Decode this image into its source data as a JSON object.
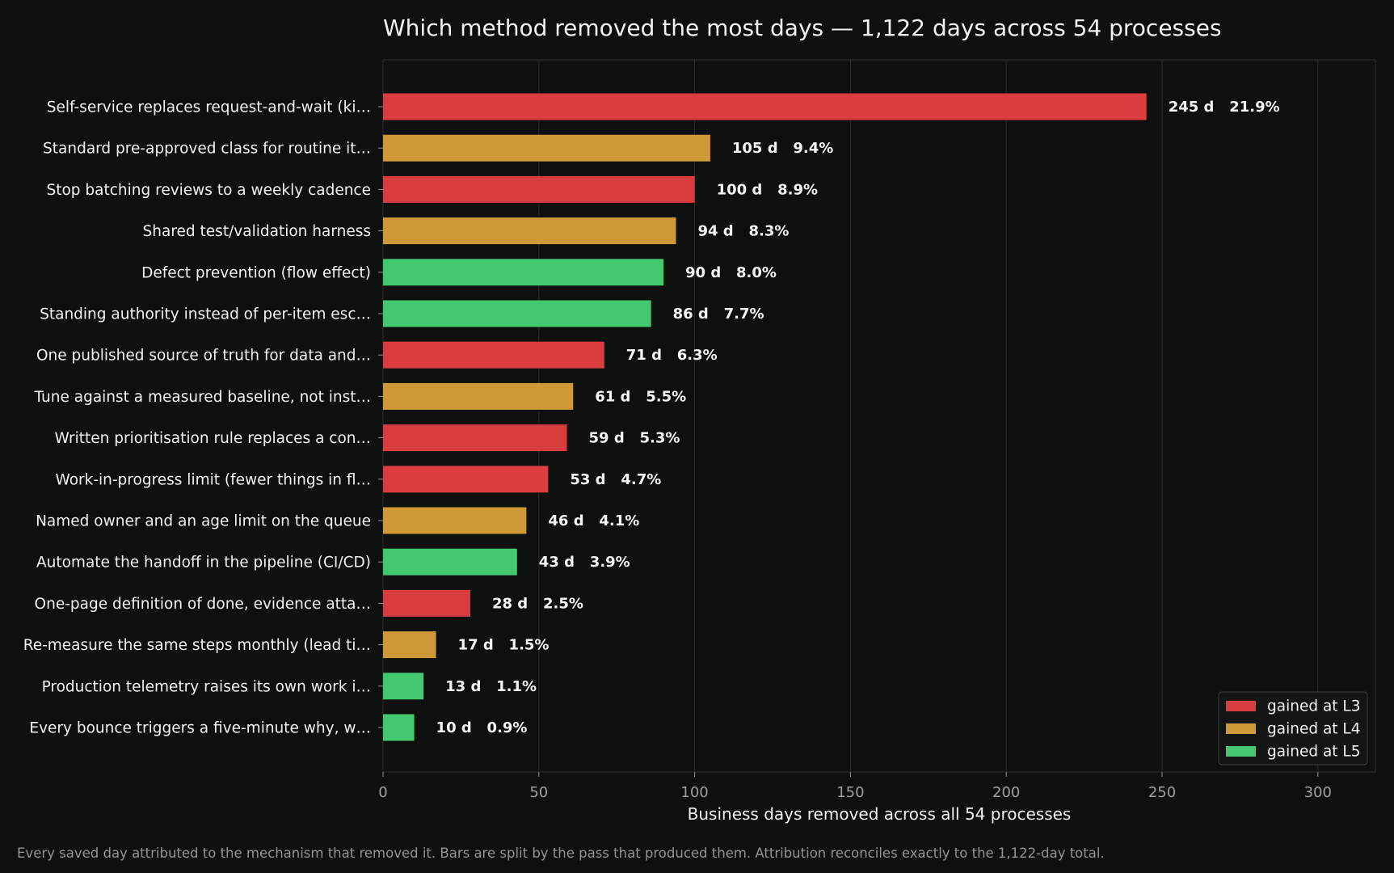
{
  "chart_data": {
    "type": "bar",
    "orientation": "horizontal",
    "title": "Which method removed the most days — 1,122 days across 54 processes",
    "xlabel": "Business days removed across all 54 processes",
    "ylabel": "",
    "xlim": [
      0,
      320
    ],
    "xticks": [
      0,
      50,
      100,
      150,
      200,
      250,
      300
    ],
    "grid": true,
    "legend_position": "bottom-right",
    "footnote": "Every saved day attributed to the mechanism that removed it. Bars are split by the pass that produced them. Attribution reconciles exactly to the 1,122-day total.",
    "legend": [
      {
        "label": "gained at L3",
        "color": "#d93d3f"
      },
      {
        "label": "gained at L4",
        "color": "#cf9937"
      },
      {
        "label": "gained at L5",
        "color": "#44c86f"
      }
    ],
    "bars": [
      {
        "category": "Self-service replaces request-and-wait (ki…",
        "value": 245,
        "label": "245 d   21.9%",
        "group": 0
      },
      {
        "category": "Standard pre-approved class for routine it…",
        "value": 105,
        "label": "105 d   9.4%",
        "group": 1
      },
      {
        "category": "Stop batching reviews to a weekly cadence",
        "value": 100,
        "label": "100 d   8.9%",
        "group": 0
      },
      {
        "category": "Shared test/validation harness",
        "value": 94,
        "label": "94 d   8.3%",
        "group": 1
      },
      {
        "category": "Defect prevention (flow effect)",
        "value": 90,
        "label": "90 d   8.0%",
        "group": 2
      },
      {
        "category": "Standing authority instead of per-item esc…",
        "value": 86,
        "label": "86 d   7.7%",
        "group": 2
      },
      {
        "category": "One published source of truth for data and…",
        "value": 71,
        "label": "71 d   6.3%",
        "group": 0
      },
      {
        "category": "Tune against a measured baseline, not inst…",
        "value": 61,
        "label": "61 d   5.5%",
        "group": 1
      },
      {
        "category": "Written prioritisation rule replaces a con…",
        "value": 59,
        "label": "59 d   5.3%",
        "group": 0
      },
      {
        "category": "Work-in-progress limit (fewer things in fl…",
        "value": 53,
        "label": "53 d   4.7%",
        "group": 0
      },
      {
        "category": "Named owner and an age limit on the queue",
        "value": 46,
        "label": "46 d   4.1%",
        "group": 1
      },
      {
        "category": "Automate the handoff in the pipeline (CI/CD)",
        "value": 43,
        "label": "43 d   3.9%",
        "group": 2
      },
      {
        "category": "One-page definition of done, evidence atta…",
        "value": 28,
        "label": "28 d   2.5%",
        "group": 0
      },
      {
        "category": "Re-measure the same steps monthly (lead ti…",
        "value": 17,
        "label": "17 d   1.5%",
        "group": 1
      },
      {
        "category": "Production telemetry raises its own work i…",
        "value": 13,
        "label": "13 d   1.1%",
        "group": 2
      },
      {
        "category": "Every bounce triggers a five-minute why, w…",
        "value": 10,
        "label": "10 d   0.9%",
        "group": 2
      }
    ]
  }
}
